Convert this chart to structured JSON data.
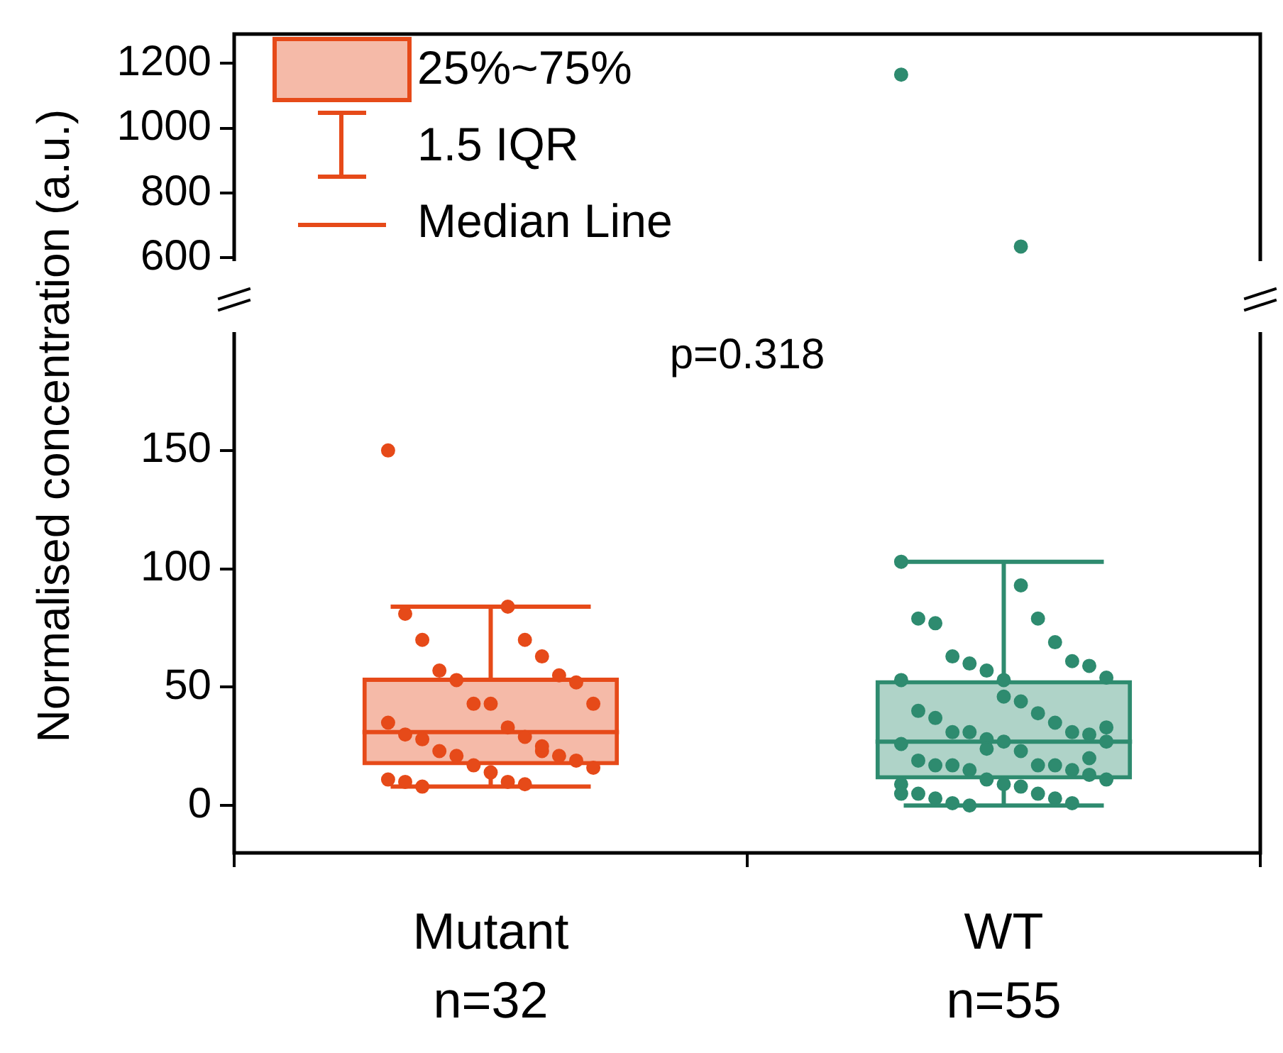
{
  "chart_data": [
    {
      "type": "scatter",
      "categories": [
        "Mutant",
        "WT"
      ],
      "ylim": [
        590,
        1290
      ],
      "yticks": [
        600,
        800,
        1000,
        1200
      ],
      "tick_labels": "y",
      "marker": "circle",
      "annotations": [
        "25%~75%",
        "1.5 IQR",
        "Median Line"
      ],
      "series": [
        {
          "color": "#2e8b6f",
          "x": [
            "WT",
            "WT"
          ],
          "values": [
            1165,
            635
          ]
        }
      ]
    },
    {
      "type": "box",
      "categories": [
        "Mutant",
        "WT"
      ],
      "ylabel": "Normalised concentration (a.u.)",
      "ylim": [
        -20,
        200
      ],
      "yticks": [
        0,
        50,
        100,
        150
      ],
      "marker": "circle",
      "annotations": [
        "p=0.318",
        "n=32",
        "n=55"
      ],
      "series": [
        {
          "colors": [
            "#e64a19",
            "#2e8b6f"
          ],
          "boxes": [
            {
              "low": 8,
              "q1": 17,
              "median": 31,
              "q3": 54,
              "high": 84
            },
            {
              "low": 0,
              "q1": 11,
              "median": 27,
              "q3": 53,
              "high": 103
            }
          ]
        },
        {
          "type": "scatter",
          "color": "#e64a19",
          "x": [
            "Mutant",
            "Mutant",
            "Mutant",
            "Mutant",
            "Mutant",
            "Mutant",
            "Mutant",
            "Mutant",
            "Mutant",
            "Mutant",
            "Mutant",
            "Mutant",
            "Mutant",
            "Mutant",
            "Mutant",
            "Mutant",
            "Mutant",
            "Mutant",
            "Mutant",
            "Mutant",
            "Mutant",
            "Mutant",
            "Mutant",
            "Mutant",
            "Mutant",
            "Mutant",
            "Mutant",
            "Mutant",
            "Mutant",
            "Mutant",
            "Mutant",
            "Mutant"
          ],
          "values": [
            150,
            84,
            81,
            70,
            70,
            63,
            57,
            55,
            53,
            52,
            43,
            43,
            43,
            35,
            33,
            30,
            29,
            28,
            23,
            23,
            21,
            21,
            19,
            17,
            16,
            14,
            11,
            10,
            10,
            9,
            8,
            25
          ]
        },
        {
          "type": "scatter",
          "color": "#2e8b6f",
          "x": [
            "WT",
            "WT",
            "WT",
            "WT",
            "WT",
            "WT",
            "WT",
            "WT",
            "WT",
            "WT",
            "WT",
            "WT",
            "WT",
            "WT",
            "WT",
            "WT",
            "WT",
            "WT",
            "WT",
            "WT",
            "WT",
            "WT",
            "WT",
            "WT",
            "WT",
            "WT",
            "WT",
            "WT",
            "WT",
            "WT",
            "WT",
            "WT",
            "WT",
            "WT",
            "WT",
            "WT",
            "WT",
            "WT",
            "WT",
            "WT",
            "WT",
            "WT",
            "WT",
            "WT",
            "WT",
            "WT",
            "WT",
            "WT",
            "WT",
            "WT",
            "WT",
            "WT",
            "WT"
          ],
          "values": [
            103,
            93,
            79,
            79,
            77,
            69,
            63,
            61,
            60,
            59,
            57,
            54,
            53,
            53,
            44,
            40,
            39,
            37,
            35,
            31,
            31,
            31,
            30,
            28,
            27,
            27,
            26,
            23,
            19,
            17,
            17,
            17,
            17,
            15,
            15,
            13,
            11,
            11,
            9,
            9,
            8,
            5,
            5,
            3,
            3,
            1,
            1,
            0,
            20,
            24,
            33,
            46,
            5
          ]
        }
      ]
    }
  ]
}
